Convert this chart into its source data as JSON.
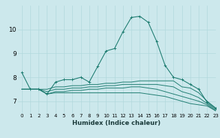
{
  "title": "",
  "xlabel": "Humidex (Indice chaleur)",
  "ylabel": "",
  "bg_color": "#cce8ec",
  "line_color": "#1a7a6e",
  "grid_color": "#b0d8dc",
  "xlim": [
    -0.5,
    23
  ],
  "ylim": [
    6.5,
    11.0
  ],
  "xticks": [
    0,
    1,
    2,
    3,
    4,
    5,
    6,
    7,
    8,
    9,
    10,
    11,
    12,
    13,
    14,
    15,
    16,
    17,
    18,
    19,
    20,
    21,
    22,
    23
  ],
  "yticks": [
    7,
    8,
    9,
    10
  ],
  "lines": [
    [
      8.2,
      7.5,
      7.5,
      7.3,
      7.8,
      7.9,
      7.9,
      8.0,
      7.8,
      8.45,
      9.1,
      9.2,
      9.9,
      10.5,
      10.55,
      10.3,
      9.5,
      8.5,
      8.0,
      7.9,
      7.7,
      7.5,
      6.95,
      6.7
    ],
    [
      7.5,
      7.5,
      7.5,
      7.5,
      7.6,
      7.6,
      7.65,
      7.65,
      7.7,
      7.7,
      7.75,
      7.75,
      7.8,
      7.8,
      7.85,
      7.85,
      7.85,
      7.85,
      7.85,
      7.6,
      7.55,
      7.35,
      7.0,
      6.72
    ],
    [
      7.5,
      7.5,
      7.5,
      7.4,
      7.5,
      7.5,
      7.55,
      7.55,
      7.6,
      7.6,
      7.65,
      7.65,
      7.7,
      7.7,
      7.7,
      7.7,
      7.7,
      7.65,
      7.6,
      7.4,
      7.3,
      7.15,
      6.9,
      6.65
    ],
    [
      7.5,
      7.5,
      7.5,
      7.3,
      7.4,
      7.4,
      7.45,
      7.45,
      7.5,
      7.5,
      7.55,
      7.55,
      7.55,
      7.6,
      7.6,
      7.55,
      7.5,
      7.4,
      7.3,
      7.2,
      7.1,
      7.0,
      6.85,
      6.6
    ],
    [
      7.5,
      7.5,
      7.5,
      7.3,
      7.35,
      7.35,
      7.35,
      7.35,
      7.35,
      7.35,
      7.35,
      7.35,
      7.35,
      7.35,
      7.35,
      7.3,
      7.25,
      7.2,
      7.1,
      7.0,
      6.9,
      6.85,
      6.8,
      6.6
    ]
  ],
  "marker_line_idx": 0,
  "marker": "+",
  "markersize": 3.5,
  "xlabel_fontsize": 6.5,
  "tick_fontsize_x": 5.0,
  "tick_fontsize_y": 6.5
}
